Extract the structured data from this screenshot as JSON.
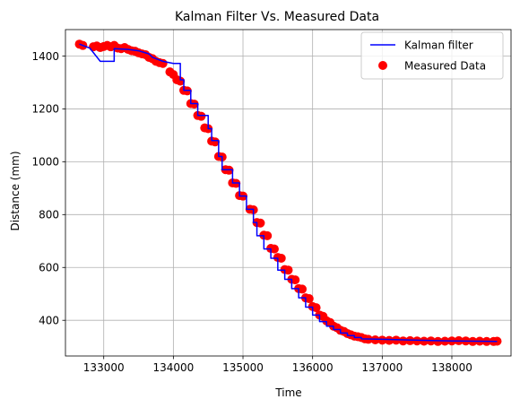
{
  "chart_data": {
    "type": "line",
    "title": "Kalman Filter Vs. Measured Data",
    "xlabel": "Time",
    "ylabel": "Distance (mm)",
    "xlim": [
      132450,
      138850
    ],
    "ylim": [
      265,
      1500
    ],
    "xticks": [
      133000,
      134000,
      135000,
      136000,
      137000,
      138000
    ],
    "yticks": [
      400,
      600,
      800,
      1000,
      1200,
      1400
    ],
    "grid": true,
    "legend_position": "top-right",
    "colors": {
      "kalman": "#0000ff",
      "measured": "#ff0000"
    },
    "series": [
      {
        "name": "Kalman filter",
        "type": "line",
        "color": "#0000ff",
        "points": [
          [
            132650,
            1445
          ],
          [
            132800,
            1430
          ],
          [
            132950,
            1380
          ],
          [
            133150,
            1380
          ],
          [
            133150,
            1428
          ],
          [
            133350,
            1425
          ],
          [
            133500,
            1420
          ],
          [
            133650,
            1408
          ],
          [
            133700,
            1395
          ],
          [
            133800,
            1385
          ],
          [
            133850,
            1380
          ],
          [
            134000,
            1372
          ],
          [
            134100,
            1372
          ],
          [
            134100,
            1310
          ],
          [
            134150,
            1310
          ],
          [
            134150,
            1270
          ],
          [
            134250,
            1270
          ],
          [
            134250,
            1220
          ],
          [
            134350,
            1220
          ],
          [
            134350,
            1175
          ],
          [
            134500,
            1175
          ],
          [
            134500,
            1125
          ],
          [
            134550,
            1125
          ],
          [
            134550,
            1080
          ],
          [
            134650,
            1080
          ],
          [
            134650,
            1020
          ],
          [
            134700,
            1020
          ],
          [
            134700,
            970
          ],
          [
            134850,
            970
          ],
          [
            134850,
            920
          ],
          [
            134950,
            920
          ],
          [
            134950,
            870
          ],
          [
            135050,
            870
          ],
          [
            135050,
            820
          ],
          [
            135150,
            820
          ],
          [
            135150,
            770
          ],
          [
            135200,
            770
          ],
          [
            135200,
            720
          ],
          [
            135300,
            720
          ],
          [
            135300,
            670
          ],
          [
            135400,
            670
          ],
          [
            135400,
            635
          ],
          [
            135500,
            635
          ],
          [
            135500,
            590
          ],
          [
            135600,
            590
          ],
          [
            135600,
            555
          ],
          [
            135700,
            555
          ],
          [
            135700,
            520
          ],
          [
            135800,
            520
          ],
          [
            135800,
            485
          ],
          [
            135900,
            485
          ],
          [
            135900,
            450
          ],
          [
            136000,
            450
          ],
          [
            136000,
            420
          ],
          [
            136100,
            420
          ],
          [
            136100,
            395
          ],
          [
            136200,
            395
          ],
          [
            136200,
            378
          ],
          [
            136300,
            378
          ],
          [
            136300,
            365
          ],
          [
            136400,
            365
          ],
          [
            136400,
            352
          ],
          [
            136500,
            352
          ],
          [
            136500,
            342
          ],
          [
            136600,
            342
          ],
          [
            136600,
            335
          ],
          [
            136700,
            335
          ],
          [
            136700,
            330
          ],
          [
            137000,
            328
          ],
          [
            137500,
            325
          ],
          [
            138000,
            322
          ],
          [
            138650,
            320
          ]
        ]
      },
      {
        "name": "Measured Data",
        "type": "scatter",
        "color": "#ff0000",
        "points": [
          [
            132650,
            1445
          ],
          [
            132700,
            1440
          ],
          [
            132850,
            1435
          ],
          [
            132900,
            1438
          ],
          [
            132950,
            1432
          ],
          [
            133000,
            1436
          ],
          [
            133050,
            1440
          ],
          [
            133100,
            1435
          ],
          [
            133150,
            1440
          ],
          [
            133200,
            1430
          ],
          [
            133250,
            1428
          ],
          [
            133300,
            1432
          ],
          [
            133350,
            1425
          ],
          [
            133400,
            1420
          ],
          [
            133450,
            1418
          ],
          [
            133500,
            1412
          ],
          [
            133550,
            1408
          ],
          [
            133600,
            1405
          ],
          [
            133650,
            1395
          ],
          [
            133700,
            1390
          ],
          [
            133750,
            1380
          ],
          [
            133800,
            1375
          ],
          [
            133850,
            1372
          ],
          [
            133950,
            1340
          ],
          [
            134000,
            1330
          ],
          [
            134050,
            1310
          ],
          [
            134100,
            1305
          ],
          [
            134150,
            1270
          ],
          [
            134200,
            1268
          ],
          [
            134250,
            1220
          ],
          [
            134300,
            1218
          ],
          [
            134350,
            1175
          ],
          [
            134400,
            1172
          ],
          [
            134450,
            1128
          ],
          [
            134500,
            1125
          ],
          [
            134550,
            1078
          ],
          [
            134600,
            1075
          ],
          [
            134650,
            1020
          ],
          [
            134700,
            1018
          ],
          [
            134750,
            970
          ],
          [
            134800,
            968
          ],
          [
            134850,
            920
          ],
          [
            134900,
            918
          ],
          [
            134950,
            872
          ],
          [
            135000,
            870
          ],
          [
            135100,
            820
          ],
          [
            135150,
            818
          ],
          [
            135200,
            770
          ],
          [
            135250,
            768
          ],
          [
            135300,
            722
          ],
          [
            135350,
            720
          ],
          [
            135400,
            672
          ],
          [
            135450,
            670
          ],
          [
            135500,
            638
          ],
          [
            135550,
            635
          ],
          [
            135600,
            592
          ],
          [
            135650,
            590
          ],
          [
            135700,
            555
          ],
          [
            135750,
            553
          ],
          [
            135800,
            520
          ],
          [
            135850,
            518
          ],
          [
            135900,
            485
          ],
          [
            135950,
            482
          ],
          [
            136000,
            452
          ],
          [
            136050,
            448
          ],
          [
            136100,
            420
          ],
          [
            136150,
            415
          ],
          [
            136200,
            398
          ],
          [
            136250,
            392
          ],
          [
            136300,
            378
          ],
          [
            136350,
            372
          ],
          [
            136400,
            362
          ],
          [
            136450,
            358
          ],
          [
            136500,
            350
          ],
          [
            136550,
            345
          ],
          [
            136600,
            340
          ],
          [
            136650,
            338
          ],
          [
            136700,
            335
          ],
          [
            136750,
            330
          ],
          [
            136800,
            328
          ],
          [
            136900,
            326
          ],
          [
            137000,
            325
          ],
          [
            137100,
            324
          ],
          [
            137200,
            325
          ],
          [
            137300,
            322
          ],
          [
            137400,
            323
          ],
          [
            137500,
            322
          ],
          [
            137600,
            321
          ],
          [
            137700,
            322
          ],
          [
            137800,
            320
          ],
          [
            137900,
            321
          ],
          [
            138000,
            322
          ],
          [
            138100,
            323
          ],
          [
            138200,
            322
          ],
          [
            138300,
            320
          ],
          [
            138400,
            321
          ],
          [
            138500,
            320
          ],
          [
            138600,
            320
          ],
          [
            138650,
            321
          ]
        ]
      }
    ]
  }
}
